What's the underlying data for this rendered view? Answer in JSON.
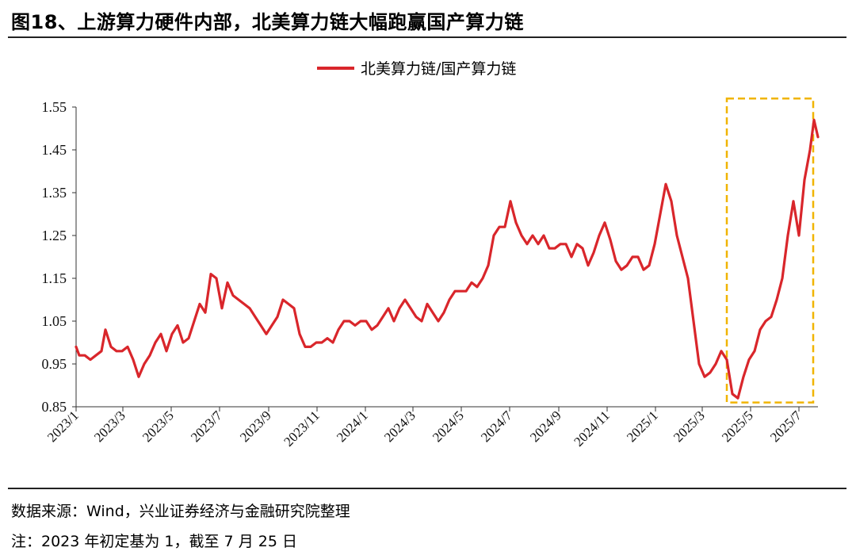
{
  "title": "图18、上游算力硬件内部，北美算力链大幅跑赢国产算力链",
  "source": "数据来源：Wind，兴业证券经济与金融研究院整理",
  "note": "注：2023 年初定基为 1，截至 7 月 25 日",
  "colors": {
    "line": "#d9262b",
    "highlight": "#f0b400",
    "axis": "#333333"
  },
  "chart_data": {
    "type": "line",
    "title": "",
    "xlabel": "",
    "ylabel": "",
    "legend": "top-center",
    "grid": false,
    "ylim": [
      0.85,
      1.55
    ],
    "yticks": [
      "0.85",
      "0.95",
      "1.05",
      "1.15",
      "1.25",
      "1.35",
      "1.45",
      "1.55"
    ],
    "xticks": [
      "2023/1",
      "2023/3",
      "2023/5",
      "2023/7",
      "2023/9",
      "2023/11",
      "2024/1",
      "2024/3",
      "2024/5",
      "2024/7",
      "2024/9",
      "2024/11",
      "2025/1",
      "2025/3",
      "2025/5",
      "2025/7"
    ],
    "highlight_box": {
      "x_from": "2025/4",
      "x_to": "2025/7/25",
      "y_from": 0.86,
      "y_to": 1.57
    },
    "series": [
      {
        "name": "北美算力链/国产算力链",
        "points": [
          [
            "2023-01-01",
            0.99
          ],
          [
            "2023-01-05",
            0.97
          ],
          [
            "2023-01-12",
            0.97
          ],
          [
            "2023-01-19",
            0.96
          ],
          [
            "2023-01-26",
            0.97
          ],
          [
            "2023-02-02",
            0.98
          ],
          [
            "2023-02-07",
            1.03
          ],
          [
            "2023-02-14",
            0.99
          ],
          [
            "2023-02-21",
            0.98
          ],
          [
            "2023-02-28",
            0.98
          ],
          [
            "2023-03-07",
            0.99
          ],
          [
            "2023-03-14",
            0.96
          ],
          [
            "2023-03-21",
            0.92
          ],
          [
            "2023-03-28",
            0.95
          ],
          [
            "2023-04-04",
            0.97
          ],
          [
            "2023-04-11",
            1.0
          ],
          [
            "2023-04-18",
            1.02
          ],
          [
            "2023-04-25",
            0.98
          ],
          [
            "2023-05-02",
            1.02
          ],
          [
            "2023-05-09",
            1.04
          ],
          [
            "2023-05-16",
            1.0
          ],
          [
            "2023-05-23",
            1.01
          ],
          [
            "2023-05-30",
            1.05
          ],
          [
            "2023-06-06",
            1.09
          ],
          [
            "2023-06-13",
            1.07
          ],
          [
            "2023-06-20",
            1.16
          ],
          [
            "2023-06-27",
            1.15
          ],
          [
            "2023-07-04",
            1.08
          ],
          [
            "2023-07-11",
            1.14
          ],
          [
            "2023-07-18",
            1.11
          ],
          [
            "2023-07-25",
            1.1
          ],
          [
            "2023-08-01",
            1.09
          ],
          [
            "2023-08-08",
            1.08
          ],
          [
            "2023-08-15",
            1.06
          ],
          [
            "2023-08-22",
            1.04
          ],
          [
            "2023-08-29",
            1.02
          ],
          [
            "2023-09-05",
            1.04
          ],
          [
            "2023-09-12",
            1.06
          ],
          [
            "2023-09-19",
            1.1
          ],
          [
            "2023-09-26",
            1.09
          ],
          [
            "2023-10-03",
            1.08
          ],
          [
            "2023-10-10",
            1.02
          ],
          [
            "2023-10-17",
            0.99
          ],
          [
            "2023-10-24",
            0.99
          ],
          [
            "2023-10-31",
            1.0
          ],
          [
            "2023-11-07",
            1.0
          ],
          [
            "2023-11-14",
            1.01
          ],
          [
            "2023-11-21",
            1.0
          ],
          [
            "2023-11-28",
            1.03
          ],
          [
            "2023-12-05",
            1.05
          ],
          [
            "2023-12-12",
            1.05
          ],
          [
            "2023-12-19",
            1.04
          ],
          [
            "2023-12-26",
            1.05
          ],
          [
            "2024-01-02",
            1.05
          ],
          [
            "2024-01-09",
            1.03
          ],
          [
            "2024-01-16",
            1.04
          ],
          [
            "2024-01-23",
            1.06
          ],
          [
            "2024-01-30",
            1.08
          ],
          [
            "2024-02-06",
            1.05
          ],
          [
            "2024-02-13",
            1.08
          ],
          [
            "2024-02-20",
            1.1
          ],
          [
            "2024-02-27",
            1.08
          ],
          [
            "2024-03-05",
            1.06
          ],
          [
            "2024-03-12",
            1.05
          ],
          [
            "2024-03-19",
            1.09
          ],
          [
            "2024-03-26",
            1.07
          ],
          [
            "2024-04-02",
            1.05
          ],
          [
            "2024-04-09",
            1.07
          ],
          [
            "2024-04-16",
            1.1
          ],
          [
            "2024-04-23",
            1.12
          ],
          [
            "2024-04-30",
            1.12
          ],
          [
            "2024-05-07",
            1.12
          ],
          [
            "2024-05-14",
            1.14
          ],
          [
            "2024-05-21",
            1.13
          ],
          [
            "2024-05-28",
            1.15
          ],
          [
            "2024-06-04",
            1.18
          ],
          [
            "2024-06-11",
            1.25
          ],
          [
            "2024-06-18",
            1.27
          ],
          [
            "2024-06-25",
            1.27
          ],
          [
            "2024-07-02",
            1.33
          ],
          [
            "2024-07-09",
            1.28
          ],
          [
            "2024-07-16",
            1.25
          ],
          [
            "2024-07-23",
            1.23
          ],
          [
            "2024-07-30",
            1.25
          ],
          [
            "2024-08-06",
            1.23
          ],
          [
            "2024-08-13",
            1.25
          ],
          [
            "2024-08-20",
            1.22
          ],
          [
            "2024-08-27",
            1.22
          ],
          [
            "2024-09-03",
            1.23
          ],
          [
            "2024-09-10",
            1.23
          ],
          [
            "2024-09-17",
            1.2
          ],
          [
            "2024-09-24",
            1.23
          ],
          [
            "2024-10-01",
            1.22
          ],
          [
            "2024-10-08",
            1.18
          ],
          [
            "2024-10-15",
            1.21
          ],
          [
            "2024-10-22",
            1.25
          ],
          [
            "2024-10-29",
            1.28
          ],
          [
            "2024-11-05",
            1.24
          ],
          [
            "2024-11-12",
            1.19
          ],
          [
            "2024-11-19",
            1.17
          ],
          [
            "2024-11-26",
            1.18
          ],
          [
            "2024-12-03",
            1.2
          ],
          [
            "2024-12-10",
            1.2
          ],
          [
            "2024-12-17",
            1.17
          ],
          [
            "2024-12-24",
            1.18
          ],
          [
            "2024-12-31",
            1.23
          ],
          [
            "2025-01-07",
            1.3
          ],
          [
            "2025-01-14",
            1.37
          ],
          [
            "2025-01-21",
            1.33
          ],
          [
            "2025-01-28",
            1.25
          ],
          [
            "2025-02-04",
            1.2
          ],
          [
            "2025-02-11",
            1.15
          ],
          [
            "2025-02-18",
            1.05
          ],
          [
            "2025-02-25",
            0.95
          ],
          [
            "2025-03-04",
            0.92
          ],
          [
            "2025-03-11",
            0.93
          ],
          [
            "2025-03-18",
            0.95
          ],
          [
            "2025-03-25",
            0.98
          ],
          [
            "2025-04-01",
            0.96
          ],
          [
            "2025-04-08",
            0.88
          ],
          [
            "2025-04-15",
            0.87
          ],
          [
            "2025-04-22",
            0.92
          ],
          [
            "2025-04-29",
            0.96
          ],
          [
            "2025-05-06",
            0.98
          ],
          [
            "2025-05-13",
            1.03
          ],
          [
            "2025-05-20",
            1.05
          ],
          [
            "2025-05-27",
            1.06
          ],
          [
            "2025-06-03",
            1.1
          ],
          [
            "2025-06-10",
            1.15
          ],
          [
            "2025-06-17",
            1.25
          ],
          [
            "2025-06-24",
            1.33
          ],
          [
            "2025-07-01",
            1.25
          ],
          [
            "2025-07-08",
            1.38
          ],
          [
            "2025-07-15",
            1.45
          ],
          [
            "2025-07-20",
            1.52
          ],
          [
            "2025-07-25",
            1.48
          ]
        ]
      }
    ]
  }
}
